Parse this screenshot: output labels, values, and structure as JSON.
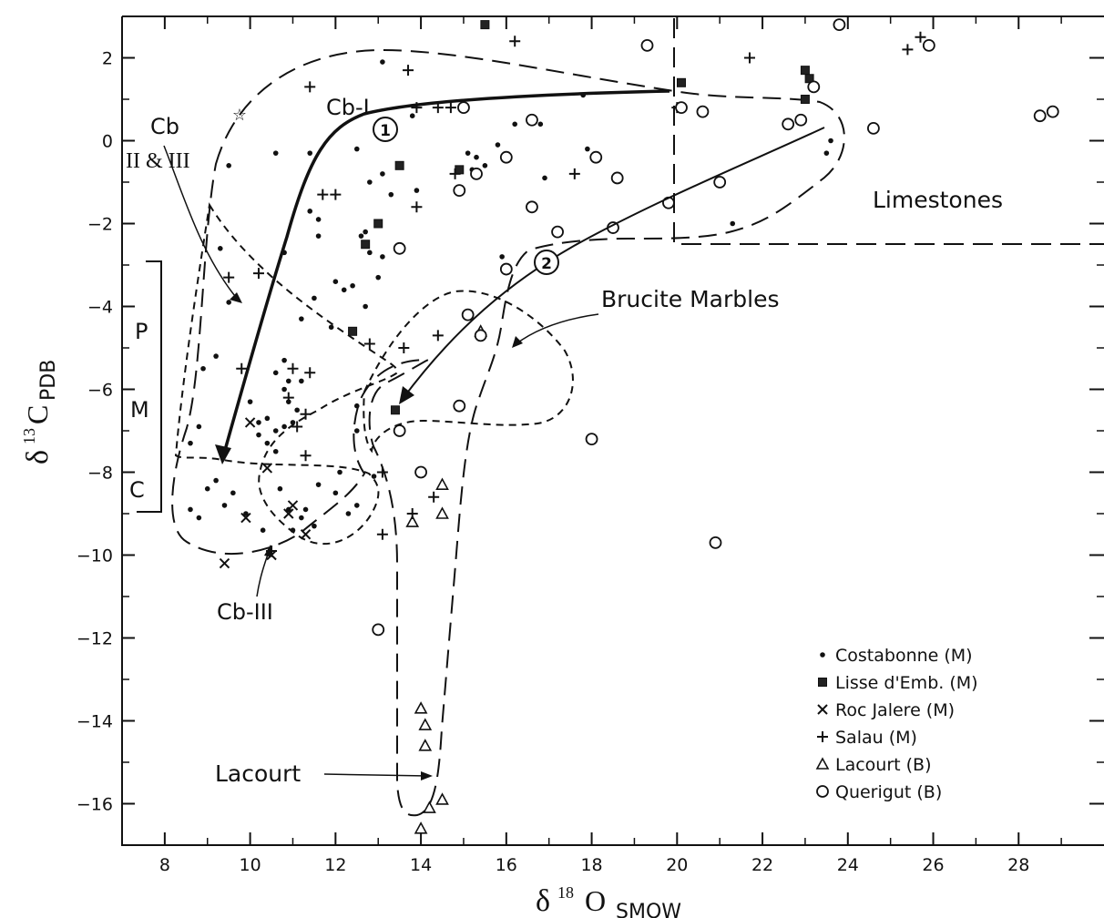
{
  "chart_data": {
    "type": "scatter",
    "xlabel": "δ18 O SMOW",
    "ylabel": "δ13C PDB",
    "xlim": [
      7,
      30
    ],
    "ylim": [
      -17,
      3
    ],
    "x_ticks": [
      8,
      10,
      12,
      14,
      16,
      18,
      20,
      22,
      24,
      26,
      28
    ],
    "y_ticks": [
      2,
      0,
      -2,
      -4,
      -6,
      -8,
      -10,
      -12,
      -14,
      -16
    ],
    "grid": false,
    "legend_position": "bottom-right",
    "series": [
      {
        "name": "Costabonne (M)",
        "marker": "dot",
        "points": [
          [
            9.3,
            -2.6
          ],
          [
            9.5,
            -3.9
          ],
          [
            9.2,
            -5.2
          ],
          [
            8.8,
            -6.9
          ],
          [
            8.6,
            -7.3
          ],
          [
            9.0,
            -8.4
          ],
          [
            8.6,
            -8.9
          ],
          [
            8.8,
            -9.1
          ],
          [
            9.2,
            -8.2
          ],
          [
            9.4,
            -8.8
          ],
          [
            9.6,
            -8.5
          ],
          [
            9.9,
            -9.0
          ],
          [
            10.3,
            -9.4
          ],
          [
            9.5,
            -0.6
          ],
          [
            10.6,
            -0.3
          ],
          [
            10.8,
            -2.7
          ],
          [
            11.2,
            -4.3
          ],
          [
            11.5,
            -3.8
          ],
          [
            11.9,
            -4.5
          ],
          [
            11.6,
            -2.3
          ],
          [
            11.4,
            -1.7
          ],
          [
            11.6,
            -1.9
          ],
          [
            11.4,
            -0.3
          ],
          [
            12.5,
            -0.2
          ],
          [
            13.1,
            1.9
          ],
          [
            13.8,
            0.6
          ],
          [
            13.9,
            -1.2
          ],
          [
            13.1,
            -0.8
          ],
          [
            12.8,
            -1.0
          ],
          [
            13.3,
            -1.3
          ],
          [
            12.6,
            -2.3
          ],
          [
            12.8,
            -2.7
          ],
          [
            13.1,
            -2.8
          ],
          [
            13.0,
            -3.3
          ],
          [
            12.4,
            -3.5
          ],
          [
            12.2,
            -3.6
          ],
          [
            12.0,
            -3.4
          ],
          [
            12.7,
            -4.0
          ],
          [
            12.7,
            -2.2
          ],
          [
            10.0,
            -6.3
          ],
          [
            10.2,
            -6.8
          ],
          [
            10.4,
            -6.7
          ],
          [
            10.6,
            -7.0
          ],
          [
            10.8,
            -6.9
          ],
          [
            11.0,
            -6.8
          ],
          [
            10.9,
            -6.3
          ],
          [
            10.8,
            -6.0
          ],
          [
            10.9,
            -5.8
          ],
          [
            10.6,
            -5.6
          ],
          [
            10.8,
            -5.3
          ],
          [
            11.2,
            -5.8
          ],
          [
            11.1,
            -6.5
          ],
          [
            10.4,
            -7.3
          ],
          [
            10.6,
            -7.5
          ],
          [
            10.2,
            -7.1
          ],
          [
            10.7,
            -8.4
          ],
          [
            10.9,
            -8.9
          ],
          [
            11.0,
            -9.4
          ],
          [
            11.3,
            -8.9
          ],
          [
            11.5,
            -9.3
          ],
          [
            11.2,
            -9.1
          ],
          [
            11.6,
            -8.3
          ],
          [
            12.0,
            -8.5
          ],
          [
            12.3,
            -9.0
          ],
          [
            12.1,
            -8.0
          ],
          [
            12.5,
            -8.8
          ],
          [
            12.9,
            -8.1
          ],
          [
            12.5,
            -6.4
          ],
          [
            12.5,
            -7.0
          ],
          [
            15.1,
            -0.3
          ],
          [
            15.3,
            -0.4
          ],
          [
            15.2,
            -0.7
          ],
          [
            15.5,
            -0.6
          ],
          [
            15.8,
            -0.1
          ],
          [
            16.2,
            0.4
          ],
          [
            16.8,
            0.4
          ],
          [
            16.9,
            -0.9
          ],
          [
            17.8,
            1.1
          ],
          [
            17.9,
            -0.2
          ],
          [
            15.9,
            -2.8
          ],
          [
            23.5,
            -0.3
          ],
          [
            23.6,
            0.0
          ],
          [
            21.3,
            -2.0
          ],
          [
            8.9,
            -5.5
          ]
        ]
      },
      {
        "name": "Lisse d'Emb. (M)",
        "marker": "square",
        "points": [
          [
            15.5,
            2.8
          ],
          [
            20.1,
            1.4
          ],
          [
            23.0,
            1.7
          ],
          [
            23.1,
            1.5
          ],
          [
            23.0,
            1.0
          ],
          [
            13.5,
            -0.6
          ],
          [
            14.9,
            -0.7
          ],
          [
            13.0,
            -2.0
          ],
          [
            12.7,
            -2.5
          ],
          [
            12.4,
            -4.6
          ],
          [
            13.4,
            -6.5
          ]
        ]
      },
      {
        "name": "Roc Jalere (M)",
        "marker": "cross",
        "points": [
          [
            10.0,
            -6.8
          ],
          [
            10.4,
            -7.9
          ],
          [
            9.9,
            -9.1
          ],
          [
            10.5,
            -10.0
          ],
          [
            9.4,
            -10.2
          ],
          [
            11.0,
            -8.8
          ],
          [
            11.3,
            -9.5
          ],
          [
            10.9,
            -9.0
          ]
        ]
      },
      {
        "name": "Salau (M)",
        "marker": "plus",
        "points": [
          [
            16.2,
            2.4
          ],
          [
            21.7,
            2.0
          ],
          [
            25.7,
            2.5
          ],
          [
            25.4,
            2.2
          ],
          [
            11.4,
            1.3
          ],
          [
            13.7,
            1.7
          ],
          [
            13.9,
            0.8
          ],
          [
            14.4,
            0.8
          ],
          [
            14.7,
            0.8
          ],
          [
            20.0,
            0.8
          ],
          [
            17.6,
            -0.8
          ],
          [
            11.7,
            -1.3
          ],
          [
            12.0,
            -1.3
          ],
          [
            13.9,
            -1.6
          ],
          [
            9.5,
            -3.3
          ],
          [
            10.2,
            -3.2
          ],
          [
            9.8,
            -5.5
          ],
          [
            12.8,
            -4.9
          ],
          [
            13.6,
            -5.0
          ],
          [
            14.4,
            -4.7
          ],
          [
            11.0,
            -5.5
          ],
          [
            11.4,
            -5.6
          ],
          [
            10.9,
            -6.2
          ],
          [
            11.3,
            -6.6
          ],
          [
            11.1,
            -6.9
          ],
          [
            11.3,
            -7.6
          ],
          [
            13.1,
            -8.0
          ],
          [
            13.1,
            -9.5
          ],
          [
            14.3,
            -8.6
          ],
          [
            13.8,
            -9.0
          ],
          [
            10.5,
            -9.9
          ],
          [
            14.8,
            -0.8
          ]
        ]
      },
      {
        "name": "Lacourt (B)",
        "marker": "triangle",
        "points": [
          [
            15.4,
            -4.6
          ],
          [
            14.5,
            -8.3
          ],
          [
            14.5,
            -9.0
          ],
          [
            13.8,
            -9.2
          ],
          [
            14.0,
            -13.7
          ],
          [
            14.1,
            -14.1
          ],
          [
            14.1,
            -14.6
          ],
          [
            14.2,
            -16.1
          ],
          [
            14.5,
            -15.9
          ],
          [
            14.0,
            -16.6
          ]
        ]
      },
      {
        "name": "Querigut (B)",
        "marker": "circle",
        "points": [
          [
            23.8,
            2.8
          ],
          [
            25.9,
            2.3
          ],
          [
            19.3,
            2.3
          ],
          [
            15.0,
            0.8
          ],
          [
            20.1,
            0.8
          ],
          [
            20.6,
            0.7
          ],
          [
            23.2,
            1.3
          ],
          [
            22.9,
            0.5
          ],
          [
            22.6,
            0.4
          ],
          [
            24.6,
            0.3
          ],
          [
            28.5,
            0.6
          ],
          [
            28.8,
            0.7
          ],
          [
            16.6,
            0.5
          ],
          [
            16.0,
            -0.4
          ],
          [
            15.3,
            -0.8
          ],
          [
            14.9,
            -1.2
          ],
          [
            18.1,
            -0.4
          ],
          [
            18.6,
            -0.9
          ],
          [
            19.8,
            -1.5
          ],
          [
            21.0,
            -1.0
          ],
          [
            16.6,
            -1.6
          ],
          [
            17.2,
            -2.2
          ],
          [
            18.5,
            -2.1
          ],
          [
            16.0,
            -3.1
          ],
          [
            13.5,
            -2.6
          ],
          [
            15.1,
            -4.2
          ],
          [
            14.9,
            -6.4
          ],
          [
            13.5,
            -7.0
          ],
          [
            14.0,
            -8.0
          ],
          [
            18.0,
            -7.2
          ],
          [
            20.9,
            -9.7
          ],
          [
            13.0,
            -11.8
          ],
          [
            15.4,
            -4.7
          ]
        ]
      }
    ],
    "annotations": {
      "cb1": "Cb-I",
      "cb23_line1": "Cb",
      "cb23_line2": "II & III",
      "cb3": "Cb-III",
      "limestones": "Limestones",
      "brucite": "Brucite Marbles",
      "lacourt": "Lacourt",
      "path1": "1",
      "path2": "2",
      "pmc_p": "P",
      "pmc_m": "M",
      "pmc_c": "C"
    }
  }
}
